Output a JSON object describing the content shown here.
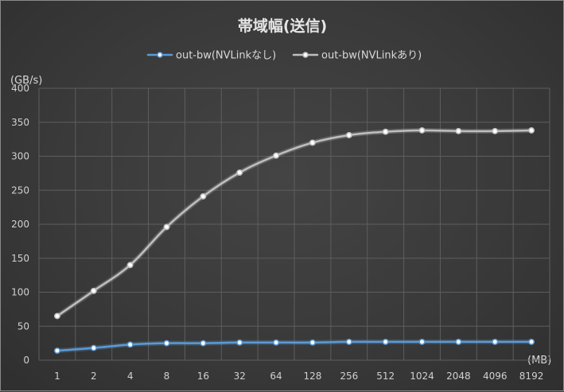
{
  "chart_data": {
    "type": "line",
    "title": "帯域幅(送信)",
    "ylabel": "(GB/s)",
    "xlabel": "(MB)",
    "ylim": [
      0,
      400
    ],
    "y_ticks": [
      0,
      50,
      100,
      150,
      200,
      250,
      300,
      350,
      400
    ],
    "categories": [
      "1",
      "2",
      "4",
      "8",
      "16",
      "32",
      "64",
      "128",
      "256",
      "512",
      "1024",
      "2048",
      "4096",
      "8192"
    ],
    "grid": true,
    "legend_position": "top",
    "series": [
      {
        "name": "out-bw(NVLinkなし)",
        "color": "#5b9bd5",
        "values": [
          14,
          18,
          23,
          25,
          25,
          26,
          26,
          26,
          27,
          27,
          27,
          27,
          27,
          27
        ]
      },
      {
        "name": "out-bw(NVLinkあり)",
        "color": "#bfbfbf",
        "values": [
          65,
          102,
          140,
          196,
          241,
          276,
          301,
          320,
          331,
          336,
          338,
          337,
          337,
          338
        ]
      }
    ]
  }
}
